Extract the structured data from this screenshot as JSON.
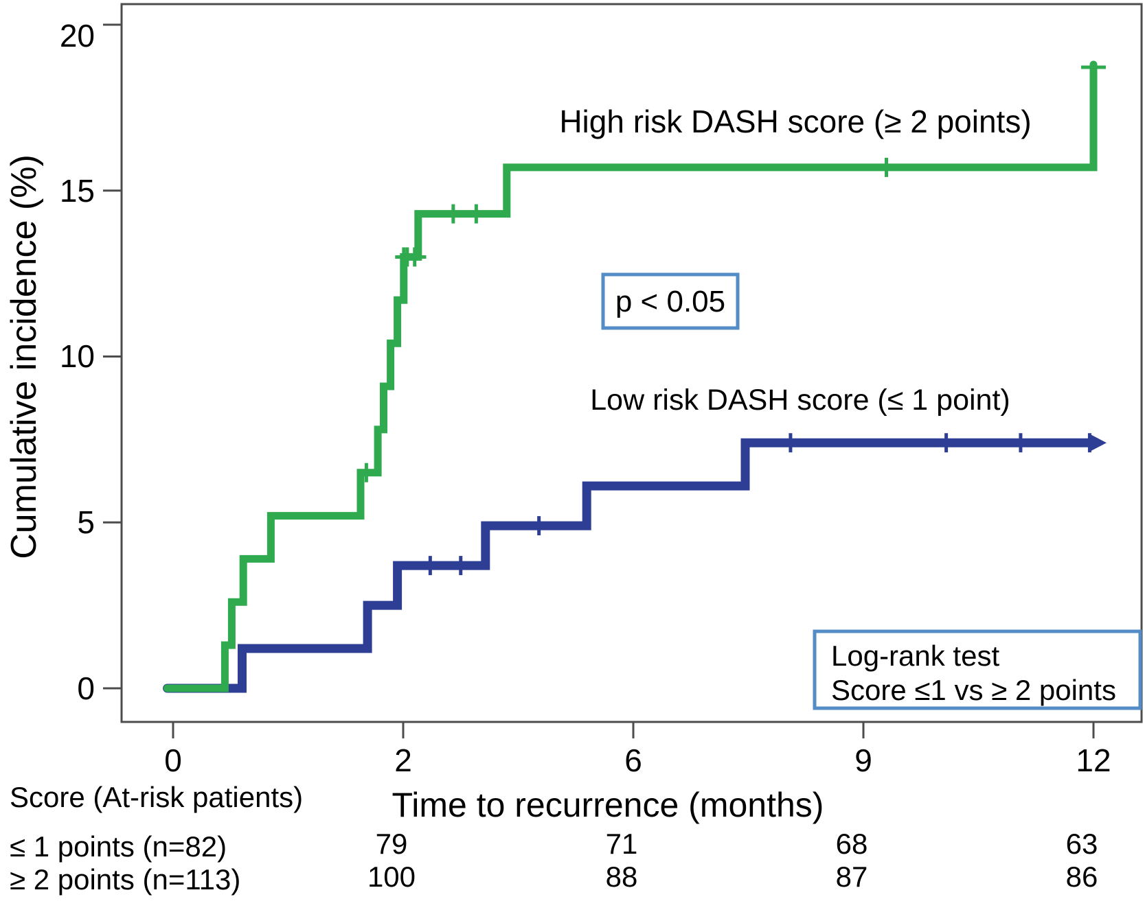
{
  "colors": {
    "high_risk_green": "#2faa4e",
    "low_risk_blue": "#2e3e95",
    "box_border_blue": "#548cc7",
    "frame_gray": "#4c4c4c",
    "text_black": "#000000"
  },
  "y_axis": {
    "title": "Cumulative incidence (%)",
    "ticks": [
      "0",
      "5",
      "10",
      "15",
      "20"
    ]
  },
  "x_axis": {
    "title": "Time to recurrence (months)",
    "ticks": [
      "0",
      "2",
      "6",
      "9",
      "12"
    ]
  },
  "annotations": {
    "high_risk_label": "High risk DASH score (≥ 2 points)",
    "low_risk_label": "Low risk DASH score (≤ 1 point)",
    "p_value": "p < 0.05",
    "logrank_line1": "Log-rank test",
    "logrank_line2": "Score ≤1 vs ≥ 2 points"
  },
  "at_risk": {
    "header": "Score (At-risk patients)",
    "time_columns": [
      2,
      6,
      9,
      12
    ],
    "rows": [
      {
        "label": "≤ 1 points (n=82)",
        "values": [
          "79",
          "71",
          "68",
          "63"
        ]
      },
      {
        "label": "≥ 2 points (n=113)",
        "values": [
          "100",
          "88",
          "87",
          "86"
        ]
      }
    ]
  },
  "chart_data": {
    "type": "line",
    "subtype": "cumulative-incidence-step-curves",
    "title": "",
    "xlabel": "Time to recurrence (months)",
    "ylabel": "Cumulative incidence (%)",
    "x_tick_months": [
      0,
      2,
      6,
      9,
      12
    ],
    "x_ticks_equally_spaced": true,
    "xlim_months": [
      0,
      12
    ],
    "ylim": [
      0,
      20.6
    ],
    "y_ticks": [
      0,
      5,
      10,
      15,
      20
    ],
    "grid": false,
    "legend_position": "labels-inside-plot",
    "p_value_annotation": "p < 0.05",
    "statistical_test": "Log-rank test, Score ≤1 vs ≥ 2 points",
    "series": [
      {
        "name": "Low risk DASH score (≤ 1 point)",
        "n": 82,
        "color": "#2e3e95",
        "start": [
          0,
          0
        ],
        "steps": [
          [
            0.6,
            1.2
          ],
          [
            1.69,
            2.5
          ],
          [
            1.95,
            3.7
          ],
          [
            3.43,
            4.9
          ],
          [
            5.19,
            6.1
          ],
          [
            7.46,
            7.4
          ]
        ],
        "censor_ticks": [
          [
            2.47,
            3.7
          ],
          [
            3.0,
            3.7
          ],
          [
            4.36,
            4.9
          ],
          [
            8.05,
            7.4
          ],
          [
            10.08,
            7.4
          ],
          [
            11.05,
            7.4
          ],
          [
            11.95,
            7.4
          ]
        ],
        "end_month": 12,
        "end_marker": "arrow",
        "at_risk": [
          82,
          79,
          71,
          68,
          63
        ]
      },
      {
        "name": "High risk DASH score (≥ 2 points)",
        "n": 113,
        "color": "#2faa4e",
        "start": [
          0,
          0
        ],
        "steps": [
          [
            0.45,
            1.3
          ],
          [
            0.51,
            2.6
          ],
          [
            0.61,
            3.9
          ],
          [
            0.85,
            5.2
          ],
          [
            1.63,
            6.5
          ],
          [
            1.78,
            7.8
          ],
          [
            1.83,
            9.1
          ],
          [
            1.89,
            10.4
          ],
          [
            1.95,
            11.7
          ],
          [
            2.01,
            13.0
          ],
          [
            2.26,
            14.3
          ],
          [
            3.8,
            15.7
          ],
          [
            12,
            18.8
          ]
        ],
        "censor_ticks": [
          [
            1.68,
            6.5
          ],
          [
            2.01,
            13.0
          ],
          [
            2.07,
            13.0
          ],
          [
            2.2,
            13.0
          ],
          [
            2.87,
            14.3
          ],
          [
            3.27,
            14.3
          ],
          [
            9.3,
            15.7
          ]
        ],
        "censor_bar": [
          1.93,
          2.4,
          13.0
        ],
        "end_month": 12,
        "end_marker": "cross",
        "at_risk": [
          113,
          100,
          88,
          87,
          86
        ]
      }
    ]
  }
}
